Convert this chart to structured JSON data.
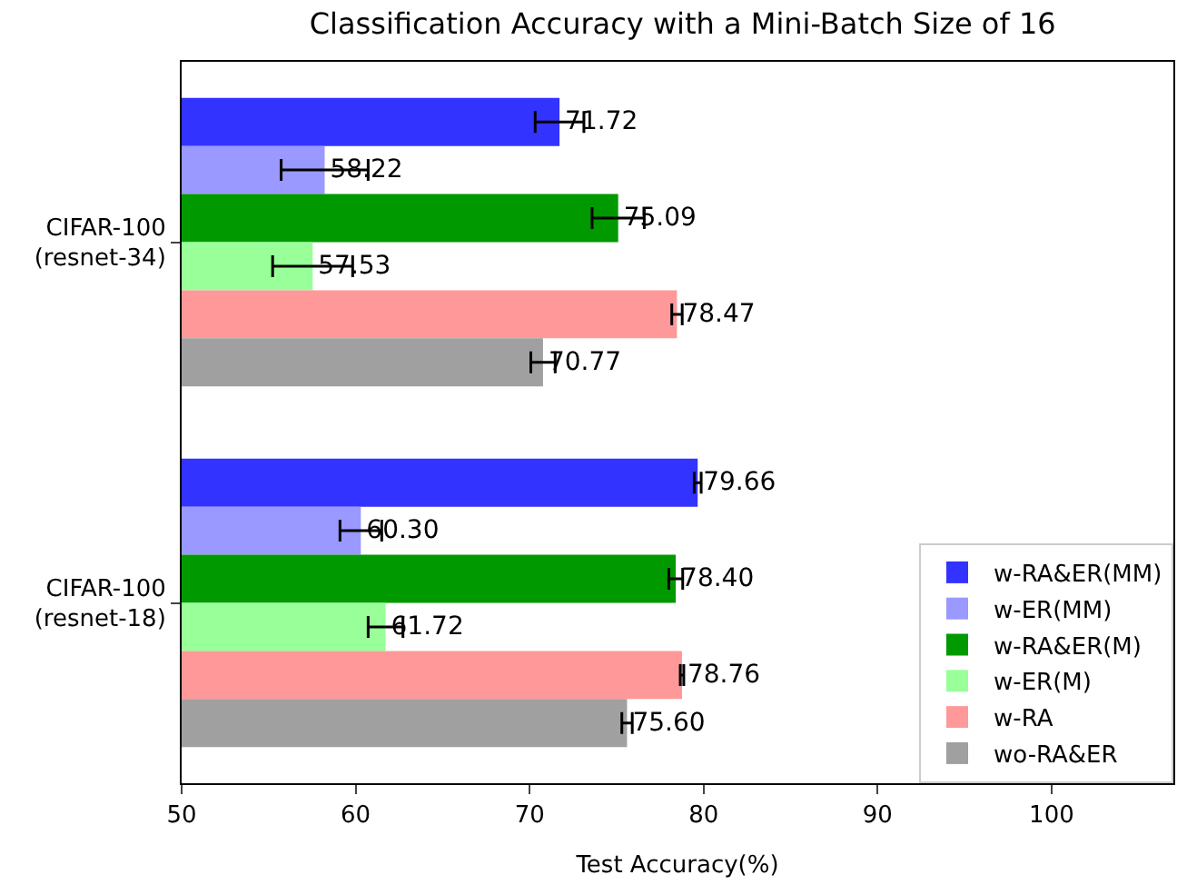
{
  "chart_data": {
    "type": "bar",
    "orientation": "horizontal",
    "title": "Classification Accuracy with a Mini-Batch Size of 16",
    "xlabel": "Test Accuracy(%)",
    "categories": [
      "CIFAR-100\n(resnet-34)",
      "CIFAR-100\n(resnet-18)"
    ],
    "series": [
      {
        "name": "w-RA&ER(MM)",
        "color": "#3333ff",
        "values": [
          71.72,
          79.66
        ],
        "errors": [
          1.4,
          0.2
        ],
        "value_labels": [
          "71.72",
          "79.66"
        ]
      },
      {
        "name": "w-ER(MM)",
        "color": "#9999ff",
        "values": [
          58.22,
          60.3
        ],
        "errors": [
          2.5,
          1.2
        ],
        "value_labels": [
          "58.22",
          "60.30"
        ]
      },
      {
        "name": "w-RA&ER(M)",
        "color": "#009900",
        "values": [
          75.09,
          78.4
        ],
        "errors": [
          1.5,
          0.4
        ],
        "value_labels": [
          "75.09",
          "78.40"
        ]
      },
      {
        "name": "w-ER(M)",
        "color": "#99ff99",
        "values": [
          57.53,
          61.72
        ],
        "errors": [
          2.3,
          1.0
        ],
        "value_labels": [
          "57.53",
          "61.72"
        ]
      },
      {
        "name": "w-RA",
        "color": "#ff9999",
        "values": [
          78.47,
          78.76
        ],
        "errors": [
          0.3,
          0.1
        ],
        "value_labels": [
          "78.47",
          "78.76"
        ]
      },
      {
        "name": "wo-RA&ER",
        "color": "#a0a0a0",
        "values": [
          70.77,
          75.6
        ],
        "errors": [
          0.7,
          0.3
        ],
        "value_labels": [
          "70.77",
          "75.60"
        ]
      }
    ],
    "xlim": [
      50,
      107
    ],
    "xticks": [
      50,
      60,
      70,
      80,
      90,
      100
    ],
    "legend": "bottom right"
  }
}
